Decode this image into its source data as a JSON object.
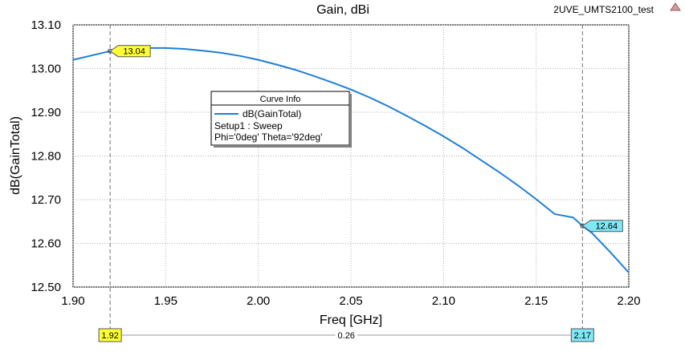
{
  "design_name": "2UVE_UMTS2100_test",
  "chart_data": {
    "type": "line",
    "title": "Gain, dBi",
    "xlabel": "Freq [GHz]",
    "ylabel": "dB(GainTotal)",
    "xlim": [
      1.9,
      2.2
    ],
    "ylim": [
      12.5,
      13.1
    ],
    "x_ticks": [
      "1.90",
      "1.95",
      "2.00",
      "2.05",
      "2.10",
      "2.15",
      "2.20"
    ],
    "y_ticks": [
      "12.50",
      "12.60",
      "12.70",
      "12.80",
      "12.90",
      "13.00",
      "13.10"
    ],
    "grid": true,
    "series": [
      {
        "name": "dB(GainTotal)",
        "color": "#1e7fd6",
        "x": [
          1.9,
          1.91,
          1.92,
          1.93,
          1.94,
          1.95,
          1.96,
          1.97,
          1.98,
          1.99,
          2.0,
          2.01,
          2.02,
          2.03,
          2.04,
          2.05,
          2.06,
          2.07,
          2.08,
          2.09,
          2.1,
          2.11,
          2.12,
          2.13,
          2.14,
          2.15,
          2.16,
          2.17,
          2.175,
          2.18,
          2.19,
          2.2
        ],
        "y": [
          13.02,
          13.03,
          13.04,
          13.045,
          13.047,
          13.047,
          13.045,
          13.041,
          13.036,
          13.029,
          13.02,
          13.009,
          12.997,
          12.983,
          12.968,
          12.952,
          12.934,
          12.914,
          12.892,
          12.869,
          12.845,
          12.819,
          12.791,
          12.763,
          12.733,
          12.701,
          12.667,
          12.659,
          12.64,
          12.624,
          12.58,
          12.533
        ]
      }
    ],
    "legend": {
      "header": "Curve Info",
      "entry": "dB(GainTotal)",
      "lines": [
        "Setup1 : Sweep",
        "Phi='0deg' Theta='92deg'"
      ]
    },
    "markers": [
      {
        "x": 1.92,
        "x_label": "1.92",
        "y_label": "13.04",
        "color": "#ffff33"
      },
      {
        "x": 2.175,
        "x_label": "2.17",
        "y_label": "12.64",
        "color": "#7fe8f4"
      }
    ],
    "delta_label": "0.26"
  }
}
